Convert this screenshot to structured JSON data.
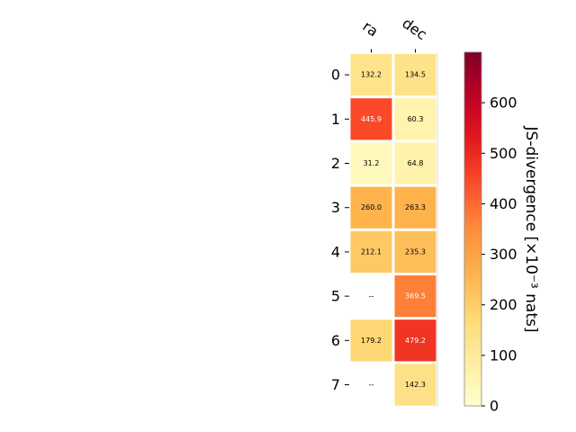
{
  "chart_data": {
    "type": "heatmap",
    "columns": [
      "ra",
      "dec"
    ],
    "rows": [
      "0",
      "1",
      "2",
      "3",
      "4",
      "5",
      "6",
      "7"
    ],
    "values": [
      [
        132.2,
        134.5
      ],
      [
        445.9,
        60.3
      ],
      [
        31.2,
        64.8
      ],
      [
        260.0,
        263.3
      ],
      [
        212.1,
        235.3
      ],
      [
        null,
        369.5
      ],
      [
        179.2,
        479.2
      ],
      [
        null,
        142.3
      ]
    ],
    "cell_labels": [
      [
        "132.2",
        "134.5"
      ],
      [
        "445.9",
        "60.3"
      ],
      [
        "31.2",
        "64.8"
      ],
      [
        "260.0",
        "263.3"
      ],
      [
        "212.1",
        "235.3"
      ],
      [
        "--",
        "369.5"
      ],
      [
        "179.2",
        "479.2"
      ],
      [
        "--",
        "142.3"
      ]
    ],
    "colormap": "YlOrRd",
    "colorbar": {
      "label": "JS-divergence [×10⁻³ nats]",
      "range": [
        0,
        700
      ],
      "ticks": [
        0,
        100,
        200,
        300,
        400,
        500,
        600
      ],
      "tick_labels": [
        "0",
        "100",
        "200",
        "300",
        "400",
        "500",
        "600"
      ]
    },
    "colors": {
      "missing_cell": "#ffffff",
      "cell_border": "#ffffff"
    }
  }
}
